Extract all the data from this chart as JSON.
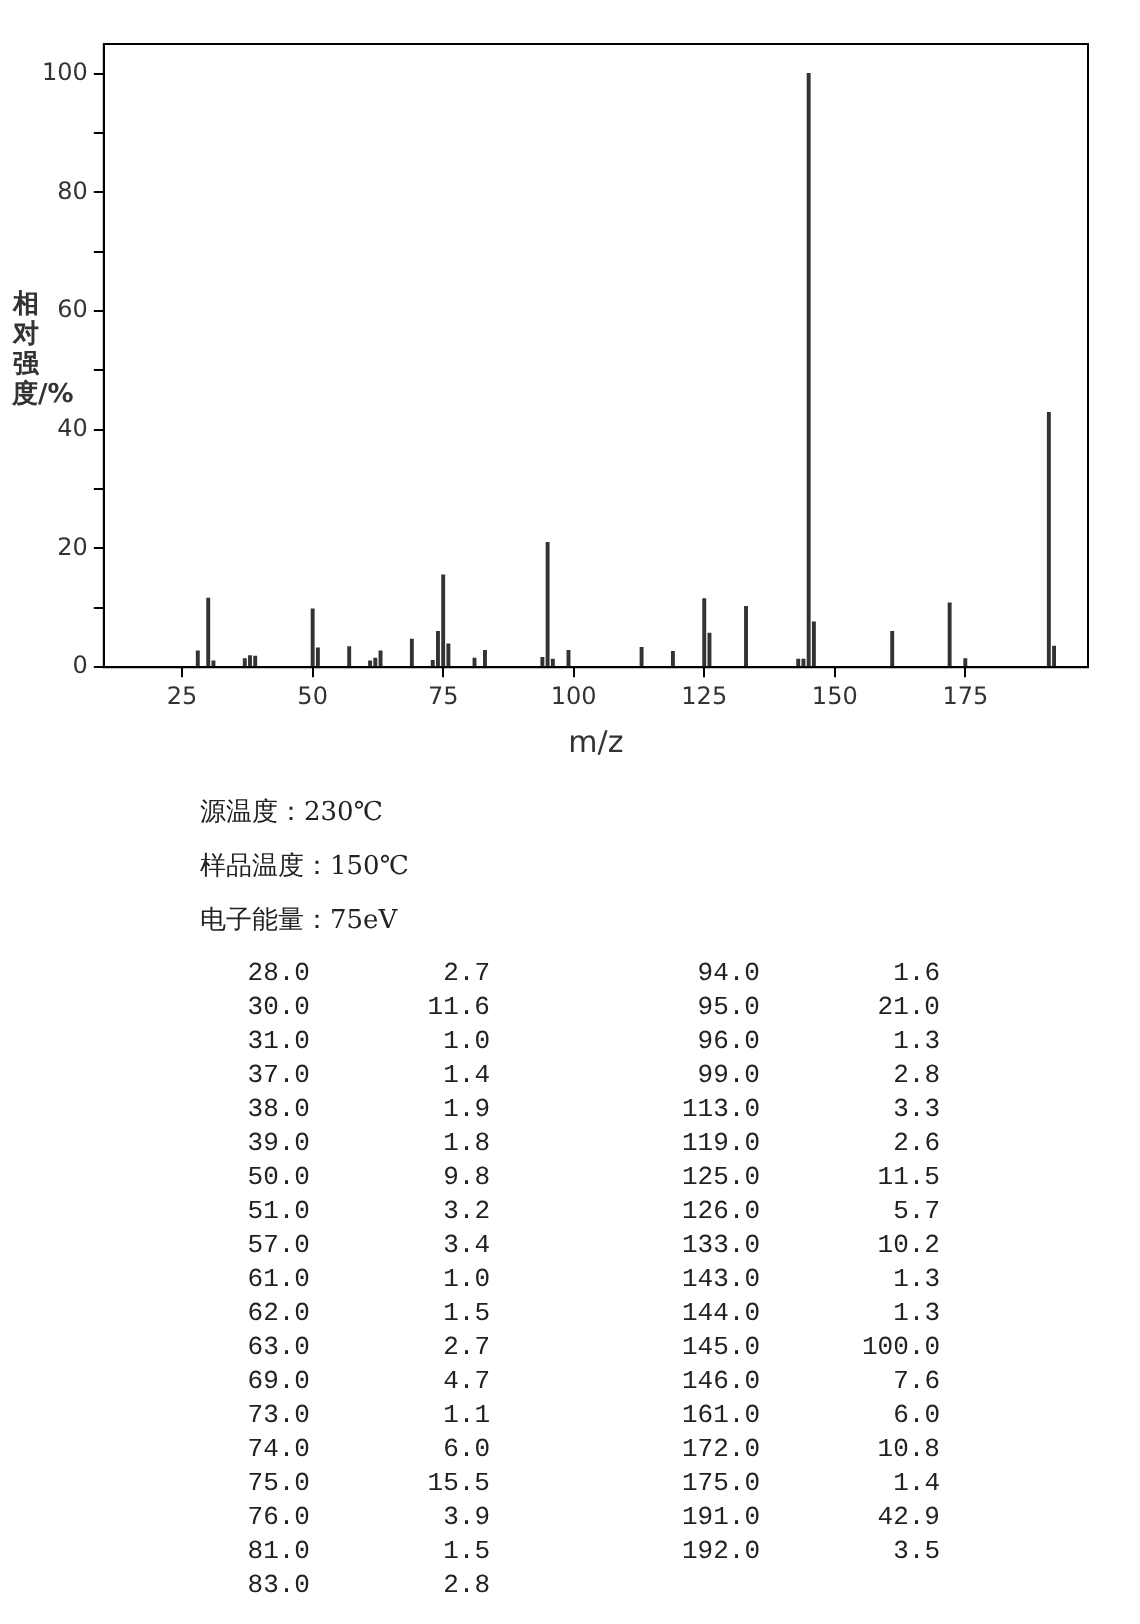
{
  "chart_data": {
    "type": "bar",
    "xlabel": "m/z",
    "ylabel": "相对强度/%",
    "color": "#333333",
    "x": [
      28,
      30,
      31,
      37,
      38,
      39,
      50,
      51,
      57,
      61,
      62,
      63,
      69,
      73,
      74,
      75,
      76,
      81,
      83,
      94,
      95,
      96,
      99,
      113,
      119,
      125,
      126,
      133,
      143,
      144,
      145,
      146,
      161,
      172,
      175,
      191,
      192
    ],
    "values": [
      2.7,
      11.6,
      1.0,
      1.4,
      1.9,
      1.8,
      9.8,
      3.2,
      3.4,
      1.0,
      1.5,
      2.7,
      4.7,
      1.1,
      6.0,
      15.5,
      3.9,
      1.5,
      2.8,
      1.6,
      21.0,
      1.3,
      2.8,
      3.3,
      2.6,
      11.5,
      5.7,
      10.2,
      1.3,
      1.3,
      100.0,
      7.6,
      6.0,
      10.8,
      1.4,
      42.9,
      3.5
    ],
    "xlim": [
      10,
      198.5
    ],
    "xticks": [
      25,
      50,
      75,
      100,
      125,
      150,
      175
    ],
    "ylim": [
      0,
      105
    ],
    "yticks": [
      0,
      {
        "value": 10,
        "label": null
      },
      20,
      {
        "value": 30,
        "label": null
      },
      40,
      {
        "value": 50,
        "label": null
      },
      60,
      {
        "value": 70,
        "label": null
      },
      80,
      {
        "value": 90,
        "label": null
      },
      100
    ],
    "grid": false,
    "legend": false,
    "annotations": [
      "源温度：230℃",
      "样品温度：150℃",
      "电子能量：75eV",
      "28.0",
      "2.7",
      "30.0",
      "11.6",
      "31.0",
      "1.0",
      "37.0",
      "1.4",
      "38.0",
      "1.9",
      "39.0",
      "1.8",
      "50.0",
      "9.8",
      "51.0",
      "3.2",
      "57.0",
      "3.4",
      "61.0",
      "1.0",
      "62.0",
      "1.5",
      "63.0",
      "2.7",
      "69.0",
      "4.7",
      "73.0",
      "1.1",
      "74.0",
      "6.0",
      "75.0",
      "15.5",
      "76.0",
      "3.9",
      "81.0",
      "1.5",
      "83.0",
      "2.8",
      "94.0",
      "1.6",
      "95.0",
      "21.0",
      "96.0",
      "1.3",
      "99.0",
      "2.8",
      "113.0",
      "3.3",
      "119.0",
      "2.6",
      "125.0",
      "11.5",
      "126.0",
      "5.7",
      "133.0",
      "10.2",
      "143.0",
      "1.3",
      "144.0",
      "1.3",
      "145.0",
      "100.0",
      "146.0",
      "7.6",
      "161.0",
      "6.0",
      "172.0",
      "10.8",
      "175.0",
      "1.4",
      "191.0",
      "42.9",
      "192.0",
      "3.5"
    ]
  }
}
